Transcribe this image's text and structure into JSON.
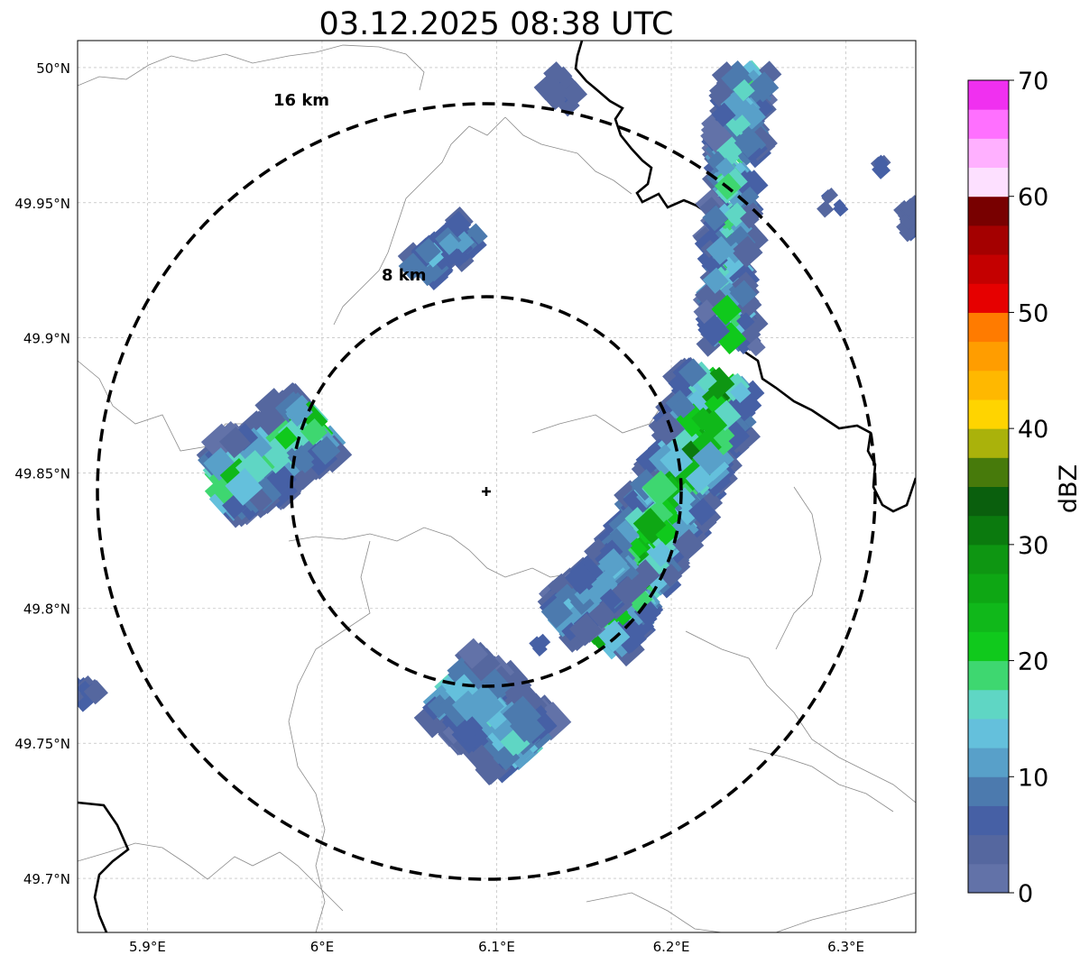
{
  "title": "03.12.2025 08:38 UTC",
  "map": {
    "lon_range": [
      5.86,
      6.34
    ],
    "lat_range": [
      49.68,
      50.01
    ],
    "lon_ticks": [
      {
        "value": 5.9,
        "label": "5.9°E"
      },
      {
        "value": 6.0,
        "label": "6°E"
      },
      {
        "value": 6.1,
        "label": "6.1°E"
      },
      {
        "value": 6.2,
        "label": "6.2°E"
      },
      {
        "value": 6.3,
        "label": "6.3°E"
      }
    ],
    "lat_ticks": [
      {
        "value": 50.0,
        "label": "50°N"
      },
      {
        "value": 49.95,
        "label": "49.95°N"
      },
      {
        "value": 49.9,
        "label": "49.9°N"
      },
      {
        "value": 49.85,
        "label": "49.85°N"
      },
      {
        "value": 49.8,
        "label": "49.8°N"
      },
      {
        "value": 49.75,
        "label": "49.75°N"
      },
      {
        "value": 49.7,
        "label": "49.7°N"
      }
    ],
    "radar_site": {
      "lon": 6.095,
      "lat": 49.843
    },
    "range_rings": [
      {
        "label": "8 km",
        "km": 8
      },
      {
        "label": "16 km",
        "km": 16
      }
    ],
    "gridlines": true
  },
  "colorbar": {
    "label": "dBZ",
    "ticks": [
      "0",
      "10",
      "20",
      "30",
      "40",
      "50",
      "60",
      "70"
    ],
    "min": 0,
    "max": 70,
    "step": 2.5,
    "colors": [
      "#6272a8",
      "#55679f",
      "#4660a5",
      "#4c7aae",
      "#58a0c9",
      "#64c0dc",
      "#5fd6c4",
      "#3ed770",
      "#10c91c",
      "#10b81a",
      "#0ea714",
      "#0e9612",
      "#0b7a0e",
      "#0a5f0d",
      "#477a0b",
      "#aab20b",
      "#ffd400",
      "#ffb800",
      "#ff9d00",
      "#ff7b00",
      "#e60000",
      "#c40000",
      "#a40000",
      "#780000",
      "#fde0ff",
      "#ffb0ff",
      "#ff70ff",
      "#f030f0"
    ]
  },
  "cells": [
    {
      "name": "cell-north-band",
      "dbz": 8
    },
    {
      "name": "cell-northwest",
      "dbz": 10
    },
    {
      "name": "cell-west",
      "dbz": 22
    },
    {
      "name": "cell-south",
      "dbz": 14
    },
    {
      "name": "cell-main-band",
      "dbz": 32
    },
    {
      "name": "cell-northeast",
      "dbz": 6
    }
  ]
}
